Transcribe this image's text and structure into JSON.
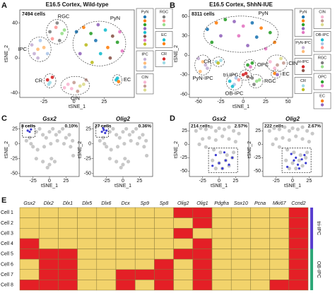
{
  "chart_data": [
    {
      "type": "scatter",
      "letter": "A",
      "title": "E16.5 Cortex, Wild-type",
      "count_label": "7494 cells",
      "xlabel": "tSNE_1",
      "ylabel": "tSNE_2",
      "xlim": [
        -45,
        50
      ],
      "ylim": [
        -45,
        55
      ],
      "xticks": [
        -25,
        0,
        25
      ],
      "yticks": [
        40,
        0,
        -40
      ],
      "series": [
        {
          "name": "PyN",
          "colors": [
            "#1f77b4",
            "#ff7f0e",
            "#2ca02c",
            "#9467bd",
            "#17becf",
            "#8c564b",
            "#e377c2",
            "#bcbd22"
          ],
          "x": [
            2,
            8,
            14,
            20,
            26,
            32,
            38,
            10,
            18,
            28,
            36,
            5,
            22,
            30,
            40,
            15
          ],
          "y": [
            30,
            35,
            28,
            38,
            32,
            25,
            30,
            15,
            20,
            12,
            18,
            5,
            5,
            0,
            8,
            -5
          ]
        },
        {
          "name": "IPC",
          "colors": [
            "#c5b0d5",
            "#ffbb78",
            "#aec7e8"
          ],
          "x": [
            -35,
            -30,
            -28,
            -33,
            -25,
            -22,
            -30
          ],
          "y": [
            15,
            10,
            20,
            5,
            12,
            5,
            0
          ]
        },
        {
          "name": "CIN",
          "colors": [
            "#f7b6d2",
            "#c49c94",
            "#dbdb8d"
          ],
          "x": [
            -5,
            0,
            5,
            -2,
            3,
            8,
            -8,
            10
          ],
          "y": [
            -30,
            -28,
            -32,
            -35,
            -38,
            -30,
            -34,
            -25
          ]
        },
        {
          "name": "RGC",
          "colors": [
            "#7f7f7f",
            "#ff9896",
            "#98df8a"
          ],
          "x": [
            -20,
            -15,
            -10,
            -12,
            -18,
            -8,
            -14
          ],
          "y": [
            30,
            35,
            28,
            20,
            22,
            32,
            40
          ]
        },
        {
          "name": "EC",
          "colors": [
            "#17becf",
            "#ff7f0e"
          ],
          "x": [
            35,
            37,
            36
          ],
          "y": [
            -25,
            -27,
            -23
          ]
        },
        {
          "name": "CR",
          "colors": [
            "#d62728",
            "#9edae5"
          ],
          "x": [
            -22,
            -20,
            -18,
            -21
          ],
          "y": [
            -25,
            -28,
            -22,
            -30
          ]
        }
      ]
    },
    {
      "type": "scatter",
      "letter": "B",
      "title": "E16.5 Cortex, ShhN-IUE",
      "count_label": "8311 cells",
      "xlabel": "tSNE_1",
      "ylabel": "tSNE_2",
      "xlim": [
        -60,
        55
      ],
      "ylim": [
        -65,
        70
      ],
      "xticks": [
        -50,
        -25,
        0,
        25,
        50
      ],
      "yticks": [
        60,
        30,
        0,
        -30,
        -60
      ],
      "series": [
        {
          "name": "PyN",
          "colors": [
            "#1f77b4",
            "#ff7f0e",
            "#2ca02c",
            "#9467bd",
            "#e377c2"
          ],
          "x": [
            -40,
            -30,
            -20,
            -10,
            0,
            10,
            20,
            30,
            -25,
            -5,
            15,
            35,
            -35,
            5,
            25
          ],
          "y": [
            40,
            50,
            55,
            52,
            45,
            50,
            42,
            35,
            30,
            30,
            28,
            20,
            20,
            15,
            10
          ]
        },
        {
          "name": "PyN-IPC",
          "colors": [
            "#c5b0d5",
            "#ffbb78"
          ],
          "x": [
            -50,
            -45,
            -40,
            -48,
            -42
          ],
          "y": [
            -5,
            -10,
            -20,
            -25,
            -15
          ]
        },
        {
          "name": "tri-IPC",
          "colors": [
            "#d62728",
            "#8c564b"
          ],
          "x": [
            0,
            5,
            3
          ],
          "y": [
            -30,
            -33,
            -28
          ]
        },
        {
          "name": "CR",
          "colors": [
            "#9edae5",
            "#bcbd22"
          ],
          "x": [
            -30,
            -28,
            -25
          ],
          "y": [
            -10,
            -12,
            -8
          ]
        },
        {
          "name": "CIN",
          "colors": [
            "#f7b6d2",
            "#c49c94",
            "#dbdb8d"
          ],
          "x": [
            30,
            38,
            42,
            35,
            45
          ],
          "y": [
            -10,
            -15,
            -5,
            -20,
            -12
          ]
        },
        {
          "name": "OB-IPC",
          "colors": [
            "#17becf",
            "#aec7e8",
            "#ff9896"
          ],
          "x": [
            -15,
            -10,
            -5,
            -12,
            -8
          ],
          "y": [
            -40,
            -45,
            -38,
            -48,
            -35
          ]
        },
        {
          "name": "RGC",
          "colors": [
            "#7f7f7f",
            "#98df8a"
          ],
          "x": [
            10,
            15,
            12,
            18
          ],
          "y": [
            -35,
            -40,
            -45,
            -38
          ]
        },
        {
          "name": "OPC",
          "colors": [
            "#2ca02c",
            "#e377c2"
          ],
          "x": [
            5,
            8,
            10
          ],
          "y": [
            -15,
            -18,
            -12
          ]
        },
        {
          "name": "EC",
          "colors": [
            "#ff7f0e",
            "#9467bd"
          ],
          "x": [
            35,
            38
          ],
          "y": [
            -28,
            -30
          ]
        }
      ]
    },
    {
      "type": "feature-scatter",
      "letter": "C",
      "xlabel": "tSNE_1",
      "ylabel": "tSNE_2",
      "xlim": [
        -45,
        45
      ],
      "ylim": [
        -55,
        35
      ],
      "xticks": [
        -25,
        0,
        25
      ],
      "yticks": [
        25,
        0,
        -25,
        -50
      ],
      "background_color": "#c8c8c8",
      "highlight_color": "#3b3bd1",
      "background": {
        "x": [
          -35,
          -30,
          -28,
          -20,
          -15,
          -10,
          -5,
          0,
          5,
          10,
          15,
          20,
          25,
          30,
          35,
          -25,
          -18,
          -8,
          2,
          12,
          22,
          32,
          -20,
          -10,
          0,
          8,
          -3,
          3,
          36
        ],
        "y": [
          5,
          10,
          0,
          20,
          25,
          15,
          10,
          20,
          25,
          15,
          20,
          25,
          10,
          15,
          5,
          -5,
          -10,
          -5,
          0,
          5,
          0,
          -5,
          -25,
          -30,
          -35,
          -30,
          -40,
          -25,
          -20
        ]
      },
      "plots": [
        {
          "gene": "Gsx2",
          "count_label": "8 cells",
          "percent_label": "0.10%",
          "x": [
            -33,
            -30,
            -28
          ],
          "y": [
            22,
            20,
            24
          ]
        },
        {
          "gene": "Olig2",
          "count_label": "27 cells",
          "percent_label": "0.36%",
          "x": [
            -32,
            -29,
            -27,
            -25,
            -30
          ],
          "y": [
            20,
            23,
            18,
            22,
            26
          ]
        }
      ]
    },
    {
      "type": "feature-scatter",
      "letter": "D",
      "xlabel": "tSNE_1",
      "ylabel": "tSNE_2",
      "xlim": [
        -45,
        45
      ],
      "ylim": [
        -60,
        40
      ],
      "xticks": [
        -25,
        0,
        25
      ],
      "yticks": [
        25,
        0,
        -25,
        -50
      ],
      "background_color": "#c8c8c8",
      "highlight_color": "#3b3bd1",
      "background": {
        "x": [
          -35,
          -28,
          -20,
          -12,
          -5,
          0,
          8,
          15,
          22,
          30,
          -25,
          -15,
          -5,
          5,
          15,
          25,
          -30,
          -20,
          -8,
          2,
          12,
          22,
          -10,
          0,
          10,
          20,
          -5,
          5,
          15
        ],
        "y": [
          25,
          30,
          28,
          32,
          25,
          30,
          28,
          32,
          25,
          20,
          10,
          12,
          8,
          15,
          10,
          5,
          0,
          -5,
          -10,
          -15,
          -20,
          -15,
          -30,
          -35,
          -30,
          -25,
          -45,
          -45,
          -40
        ]
      },
      "plots": [
        {
          "gene": "Gsx2",
          "count_label": "214 cells",
          "percent_label": "2.57%",
          "x": [
            -10,
            0,
            5,
            10,
            15,
            20,
            -5,
            8
          ],
          "y": [
            -40,
            -35,
            -45,
            -30,
            -38,
            -25,
            -20,
            -15
          ]
        },
        {
          "gene": "Olig2",
          "count_label": "222 cells",
          "percent_label": "2.67%",
          "x": [
            -8,
            2,
            8,
            14,
            20,
            -2,
            10,
            18,
            5
          ],
          "y": [
            -42,
            -30,
            -38,
            -28,
            -35,
            -18,
            -45,
            -20,
            -25
          ]
        }
      ]
    },
    {
      "type": "heatmap",
      "letter": "E",
      "columns": [
        "Gsx2",
        "Dlx2",
        "Dlx1",
        "Dlx5",
        "Dlx6",
        "Dcx",
        "Sp9",
        "Sp8",
        "Olig2",
        "Olig1",
        "Pdgfra",
        "Sox10",
        "Pcna",
        "Mki67",
        "Ccnd2"
      ],
      "rows": [
        "Cell 1",
        "Cell 2",
        "Cell 3",
        "Cell 4",
        "Cell 5",
        "Cell 6",
        "Cell 7",
        "Cell 8"
      ],
      "low_color": "#f2d36b",
      "high_color": "#e41f26",
      "values": [
        [
          0,
          0,
          0,
          0,
          0,
          0,
          0,
          0,
          1,
          1,
          0,
          0,
          0,
          0,
          1
        ],
        [
          0,
          0,
          0,
          0,
          0,
          0,
          0,
          0,
          0,
          1,
          0,
          0,
          0,
          0,
          1
        ],
        [
          0,
          0,
          0,
          0,
          0,
          0,
          0,
          0,
          1,
          0,
          0,
          0,
          0,
          0,
          1
        ],
        [
          1,
          0,
          0,
          0,
          0,
          0,
          0,
          0,
          0,
          1,
          0,
          0,
          0,
          0,
          1
        ],
        [
          1,
          1,
          1,
          0,
          0,
          0,
          0,
          0,
          1,
          1,
          0,
          0,
          0,
          0,
          1
        ],
        [
          0,
          1,
          1,
          0,
          0,
          0,
          0,
          1,
          0,
          1,
          0,
          0,
          0,
          0,
          1
        ],
        [
          0,
          1,
          1,
          0,
          0,
          1,
          1,
          1,
          0,
          1,
          0,
          0,
          0,
          0,
          1
        ],
        [
          1,
          1,
          1,
          0,
          0,
          1,
          0,
          1,
          0,
          1,
          0,
          0,
          0,
          1,
          1
        ]
      ],
      "groups": [
        {
          "name": "tri-IPC",
          "color": "#5a3fd0",
          "count": 4
        },
        {
          "name": "OB-IPC",
          "color": "#2ea878",
          "count": 4
        }
      ]
    }
  ]
}
